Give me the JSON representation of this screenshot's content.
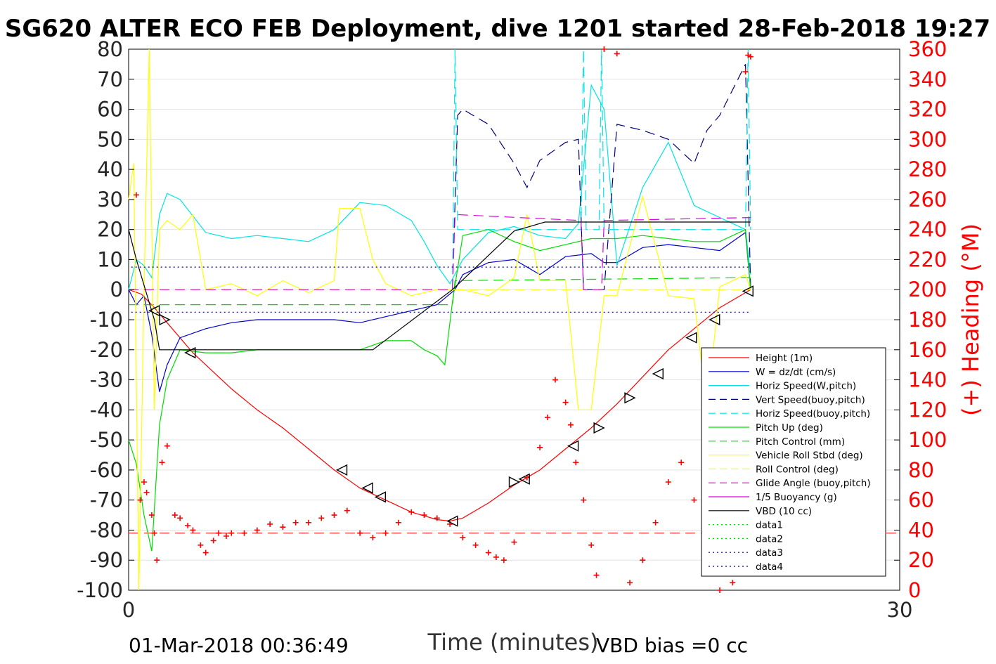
{
  "chart_data": {
    "type": "line",
    "title": "SG620 ALTER ECO FEB Deployment, dive 1201 started 28-Feb-2018 19:27",
    "xlabel": "Time (minutes)",
    "ylabel": "",
    "y2label": "(+) Heading (°M)",
    "xlim": [
      0,
      30
    ],
    "ylim": [
      -100,
      80
    ],
    "y2lim": [
      0,
      360
    ],
    "x_ticks": [
      "0",
      "30"
    ],
    "y_ticks": [
      "80",
      "70",
      "60",
      "50",
      "40",
      "30",
      "20",
      "10",
      "0",
      "-10",
      "-20",
      "-30",
      "-40",
      "-50",
      "-60",
      "-70",
      "-80",
      "-90",
      "-100"
    ],
    "y2_ticks": [
      "360",
      "340",
      "320",
      "300",
      "280",
      "260",
      "240",
      "220",
      "200",
      "180",
      "160",
      "140",
      "120",
      "100",
      "80",
      "60",
      "40",
      "20",
      "0"
    ],
    "footer_left": "01-Mar-2018 00:36:49",
    "footer_right": "VBD bias =0 cc",
    "grid": true,
    "legend_position": "bottom-right",
    "colors": {
      "red": "#ff0000",
      "blue": "#0000cd",
      "cyan": "#00e5e5",
      "green": "#00dd00",
      "yellow": "#ffff00",
      "magenta": "#dd00dd",
      "black": "#000000",
      "darkblue": "#000080"
    },
    "series": [
      {
        "name": "Height (1m)",
        "color": "red",
        "style": "solid",
        "x": [
          0,
          0.5,
          1,
          1.5,
          2,
          2.5,
          3,
          4,
          5,
          6,
          7,
          8,
          9,
          10,
          11,
          12,
          12.5,
          13,
          14,
          15,
          16,
          17,
          18,
          19,
          20,
          21,
          22,
          23,
          24,
          24.2
        ],
        "y": [
          0,
          -1.5,
          -6,
          -11,
          -16,
          -21,
          -25,
          -33,
          -40,
          -46,
          -53,
          -60,
          -66,
          -70,
          -74,
          -76.5,
          -77,
          -76,
          -71,
          -65,
          -60,
          -53,
          -46,
          -38,
          -29,
          -20,
          -13,
          -6,
          -1,
          0
        ]
      },
      {
        "name": "W = dz/dt (cm/s)",
        "color": "blue",
        "style": "solid",
        "x": [
          0,
          0.3,
          0.6,
          0.9,
          1.2,
          1.5,
          2,
          3,
          4,
          5,
          6,
          7,
          8,
          9,
          10,
          11,
          12,
          12.7,
          13,
          14,
          15,
          16,
          17,
          18,
          18.5,
          19,
          20,
          21,
          22,
          23,
          24,
          24.2
        ],
        "y": [
          0,
          -5,
          -2,
          -15,
          -34,
          -25,
          -16,
          -13,
          -11,
          -10,
          -10,
          -10,
          -10,
          -11,
          -9,
          -7,
          -5,
          0,
          5,
          9,
          10,
          5,
          11,
          12,
          9,
          9,
          14,
          15,
          14,
          13,
          19,
          0
        ]
      },
      {
        "name": "Horiz Speed(W,pitch)",
        "color": "cyan",
        "style": "solid",
        "x": [
          0,
          0.3,
          0.6,
          0.9,
          1.2,
          1.5,
          2,
          3,
          4,
          5,
          6,
          7,
          8,
          9,
          10,
          11,
          11.5,
          12,
          12.5,
          13,
          14,
          15,
          16,
          17,
          17.5,
          18,
          18.5,
          19,
          20,
          21,
          22,
          23,
          24,
          24.2
        ],
        "y": [
          0,
          10,
          8,
          4,
          25,
          32,
          30,
          19,
          17,
          18,
          17,
          16,
          20,
          29,
          28,
          23,
          16,
          8,
          2,
          10,
          19,
          21,
          18,
          17,
          22,
          68,
          60,
          8,
          34,
          49,
          28,
          24,
          20,
          5
        ]
      },
      {
        "name": "Vert Speed(buoy,pitch)",
        "color": "darkblue",
        "style": "dashed",
        "x": [
          12.6,
          12.8,
          13,
          14,
          15,
          15.5,
          16,
          17,
          17.5,
          17.7,
          17.9,
          18.2,
          18.5,
          19,
          20,
          21,
          22,
          22.5,
          23,
          24,
          24.2
        ],
        "y": [
          0,
          58,
          60,
          55,
          42,
          34,
          43,
          49,
          50,
          0,
          0,
          0,
          0,
          55,
          53,
          50,
          42,
          53,
          58,
          75,
          0
        ]
      },
      {
        "name": "Horiz Speed(buoy,pitch)",
        "color": "cyan",
        "style": "dashed",
        "x": [
          12.6,
          12.7,
          12.8,
          13,
          17.6,
          17.7,
          17.8,
          18.3,
          18.4,
          18.5,
          24,
          24.1,
          24.2
        ],
        "y": [
          0,
          80,
          20,
          20,
          20,
          80,
          20,
          20,
          80,
          20,
          20,
          80,
          20
        ]
      },
      {
        "name": "Pitch Up (deg)",
        "color": "green",
        "style": "solid",
        "x": [
          0,
          0.3,
          0.6,
          0.9,
          1.2,
          1.5,
          2,
          3,
          4,
          5,
          6,
          7,
          8,
          9,
          10,
          11,
          11.5,
          12,
          12.3,
          12.6,
          13,
          14,
          15,
          16,
          17,
          18,
          19,
          20,
          21,
          22,
          23,
          24,
          24.2
        ],
        "y": [
          -50,
          -58,
          -75,
          -87,
          -45,
          -30,
          -20,
          -21,
          -21,
          -20,
          -20,
          -20,
          -20,
          -20,
          -17,
          -17,
          -20,
          -22,
          -25,
          -4,
          18,
          20,
          16,
          13,
          15,
          17,
          17,
          18,
          17,
          16,
          16,
          20,
          0
        ]
      },
      {
        "name": "Pitch Control (mm)",
        "color": "green",
        "style": "dashed",
        "x": [
          0,
          12.6,
          12.7,
          24.2
        ],
        "y": [
          -5,
          -5,
          3,
          4
        ]
      },
      {
        "name": "Vehicle Roll Stbd (deg)",
        "color": "yellow",
        "style": "solid",
        "x": [
          0,
          0.2,
          0.4,
          0.6,
          0.8,
          1,
          1.2,
          1.5,
          2,
          2.5,
          3,
          4,
          5,
          6,
          7,
          8,
          8.2,
          9,
          9.5,
          10,
          11,
          12,
          13,
          14,
          15,
          15.5,
          16,
          17,
          17.5,
          18,
          18.5,
          19,
          20,
          21,
          22,
          22.5,
          23,
          24,
          24.2
        ],
        "y": [
          30,
          42,
          -100,
          0,
          80,
          -40,
          20,
          23,
          20,
          25,
          0,
          2,
          -2,
          3,
          -1,
          3,
          27,
          27,
          10,
          2,
          -2,
          0,
          0,
          -2,
          4,
          25,
          3,
          3,
          -40,
          -40,
          -2,
          -2,
          31,
          -2,
          -3,
          -40,
          1,
          5,
          0
        ]
      },
      {
        "name": "Roll Control (deg)",
        "color": "yellow",
        "style": "dashed",
        "x": [
          0,
          24.2
        ],
        "y": [
          0,
          0
        ]
      },
      {
        "name": "Glide Angle (buoy,pitch)",
        "color": "magenta",
        "style": "dashed",
        "x": [
          0,
          12.6,
          12.7,
          17.6,
          17.7,
          18.4,
          18.5,
          24.2
        ],
        "y": [
          0,
          0,
          25,
          23,
          0,
          0,
          23,
          24
        ]
      },
      {
        "name": "1/5 Buoyancy (g)",
        "color": "magenta",
        "style": "solid",
        "x": [],
        "y": []
      },
      {
        "name": "VBD (10 cc)",
        "color": "black",
        "style": "solid",
        "x": [
          0,
          0.3,
          1,
          1.2,
          9.5,
          12.6,
          15,
          16.2,
          24.2
        ],
        "y": [
          20,
          10,
          -10,
          -20,
          -20,
          0,
          19.5,
          22.5,
          22.5
        ]
      },
      {
        "name": "data1",
        "color": "green",
        "style": "dotted",
        "x": [],
        "y": []
      },
      {
        "name": "data2",
        "color": "green",
        "style": "dotted",
        "x": [],
        "y": []
      },
      {
        "name": "data3",
        "color": "darkblue",
        "style": "dotted",
        "x": [
          0.1,
          24.2
        ],
        "y": [
          7.5,
          7.5
        ]
      },
      {
        "name": "data4",
        "color": "darkblue",
        "style": "dotted",
        "x": [
          0.1,
          24.2
        ],
        "y": [
          -7.5,
          -7.5
        ]
      }
    ],
    "heading_series": {
      "name": "Heading (deg M)",
      "color": "red",
      "x": [
        0.3,
        0.45,
        0.6,
        0.7,
        0.9,
        1.0,
        1.1,
        1.3,
        1.5,
        1.8,
        2.0,
        2.3,
        2.5,
        2.8,
        3.0,
        3.3,
        3.5,
        3.8,
        4.0,
        4.5,
        5,
        5.5,
        6,
        6.5,
        7,
        7.5,
        8,
        8.5,
        9,
        9.5,
        10,
        10.5,
        11,
        11.5,
        12,
        12.5,
        13,
        13.5,
        14,
        14.3,
        14.6,
        15,
        15.5,
        16,
        16.3,
        16.6,
        17,
        17.2,
        17.4,
        17.7,
        18,
        18.2,
        18.5,
        19,
        19.5,
        20,
        20.5,
        21,
        21.5,
        22,
        22.5,
        23,
        23.5,
        24,
        24.1,
        24.2
      ],
      "y": [
        263,
        60,
        72,
        65,
        50,
        38,
        20,
        85,
        96,
        50,
        48,
        43,
        40,
        30,
        25,
        33,
        38,
        36,
        38,
        38,
        40,
        44,
        42,
        45,
        45,
        48,
        50,
        53,
        38,
        35,
        38,
        45,
        52,
        50,
        48,
        44,
        35,
        30,
        25,
        22,
        20,
        32,
        75,
        95,
        115,
        140,
        125,
        110,
        85,
        60,
        30,
        10,
        360,
        357,
        5,
        20,
        45,
        72,
        85,
        60,
        30,
        0,
        5,
        345,
        356,
        355
      ]
    },
    "triangle_markers": {
      "x": [
        1.0,
        1.4,
        2.4,
        8.3,
        9.3,
        9.8,
        12.6,
        15.0,
        15.4,
        17.3,
        18.3,
        19.5,
        20.6,
        21.9,
        22.8,
        24.1
      ],
      "y": [
        -7,
        -10,
        -21,
        -60,
        -66,
        -69,
        -77,
        -64,
        -63,
        -52,
        -46,
        -36,
        -28,
        -16,
        -10,
        -0.5
      ],
      "direction": [
        "left",
        "right",
        "left",
        "left",
        "left",
        "left",
        "left",
        "right",
        "left",
        "left",
        "right",
        "right",
        "left",
        "left",
        "left",
        "left"
      ]
    },
    "reference_line": {
      "axis": "y2",
      "value": 38,
      "color": "red",
      "style": "dashed"
    }
  }
}
